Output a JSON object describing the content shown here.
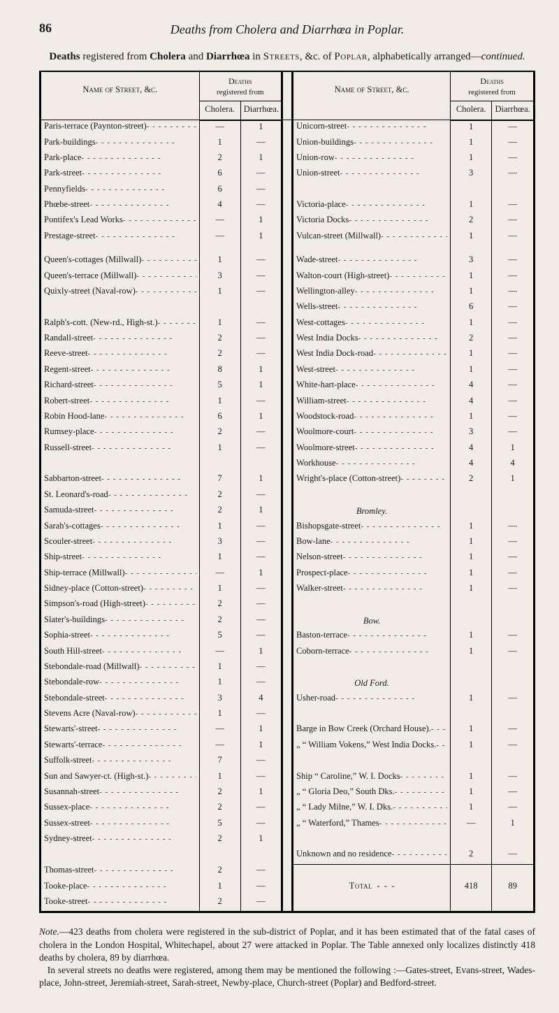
{
  "page_number": "86",
  "running_head": "Deaths from Cholera and Diarrhœa in Poplar.",
  "subhead_html": "<b>Deaths</b> registered from <b>Cholera</b> and <b>Diarrhœa</b> in <span class='smallcaps'>Streets</span>, &c. of <span class='smallcaps'>Poplar</span>, alphabetically arranged—<i>continued.</i>",
  "col_name_header": "Name of Street, &c.",
  "col_deaths_header": "Deaths",
  "col_deaths_sub": "registered from",
  "col_cholera": "Cholera.",
  "col_diarr": "Diarrhœa.",
  "left": [
    {
      "kind": "row",
      "name": "Paris-terrace (Paynton-street)",
      "c": "—",
      "d": "1"
    },
    {
      "kind": "row",
      "name": "Park-buildings",
      "c": "1",
      "d": "—"
    },
    {
      "kind": "row",
      "name": "Park-place",
      "c": "2",
      "d": "1"
    },
    {
      "kind": "row",
      "name": "Park-street",
      "c": "6",
      "d": "—"
    },
    {
      "kind": "row",
      "name": "Pennyfields",
      "c": "6",
      "d": "—"
    },
    {
      "kind": "row",
      "name": "Phœbe-street",
      "c": "4",
      "d": "—"
    },
    {
      "kind": "row",
      "name": "Pontifex's Lead Works",
      "c": "—",
      "d": "1"
    },
    {
      "kind": "row",
      "name": "Prestage-street",
      "c": "—",
      "d": "1"
    },
    {
      "kind": "gap"
    },
    {
      "kind": "row",
      "name": "Queen's-cottages (Millwall)",
      "c": "1",
      "d": "—"
    },
    {
      "kind": "row",
      "name": "Queen's-terrace (Millwall)",
      "c": "3",
      "d": "—"
    },
    {
      "kind": "row",
      "name": "Quixly-street (Naval-row)",
      "c": "1",
      "d": "—"
    },
    {
      "kind": "gap"
    },
    {
      "kind": "row",
      "name": "Ralph's-cott. (New-rd., High-st.)",
      "c": "1",
      "d": "—"
    },
    {
      "kind": "row",
      "name": "Randall-street",
      "c": "2",
      "d": "—"
    },
    {
      "kind": "row",
      "name": "Reeve-street",
      "c": "2",
      "d": "—"
    },
    {
      "kind": "row",
      "name": "Regent-street",
      "c": "8",
      "d": "1"
    },
    {
      "kind": "row",
      "name": "Richard-street",
      "c": "5",
      "d": "1"
    },
    {
      "kind": "row",
      "name": "Robert-street",
      "c": "1",
      "d": "—"
    },
    {
      "kind": "row",
      "name": "Robin Hood-lane",
      "c": "6",
      "d": "1"
    },
    {
      "kind": "row",
      "name": "Rumsey-place",
      "c": "2",
      "d": "—"
    },
    {
      "kind": "row",
      "name": "Russell-street",
      "c": "1",
      "d": "—"
    },
    {
      "kind": "gap"
    },
    {
      "kind": "row",
      "name": "Sabbarton-street",
      "c": "7",
      "d": "1"
    },
    {
      "kind": "row",
      "name": "St. Leonard's-road",
      "c": "2",
      "d": "—"
    },
    {
      "kind": "row",
      "name": "Samuda-street",
      "c": "2",
      "d": "1"
    },
    {
      "kind": "row",
      "name": "Sarah's-cottages",
      "c": "1",
      "d": "—"
    },
    {
      "kind": "row",
      "name": "Scouler-street",
      "c": "3",
      "d": "—"
    },
    {
      "kind": "row",
      "name": "Ship-street",
      "c": "1",
      "d": "—"
    },
    {
      "kind": "row",
      "name": "Ship-terrace (Millwall)",
      "c": "—",
      "d": "1"
    },
    {
      "kind": "row",
      "name": "Sidney-place (Cotton-street)",
      "c": "1",
      "d": "—"
    },
    {
      "kind": "row",
      "name": "Simpson's-road (High-street)",
      "c": "2",
      "d": "—"
    },
    {
      "kind": "row",
      "name": "Slater's-buildings",
      "c": "2",
      "d": "—"
    },
    {
      "kind": "row",
      "name": "Sophia-street",
      "c": "5",
      "d": "—"
    },
    {
      "kind": "row",
      "name": "South Hill-street",
      "c": "—",
      "d": "1"
    },
    {
      "kind": "row",
      "name": "Stebondale-road (Millwall)",
      "c": "1",
      "d": "—"
    },
    {
      "kind": "row",
      "name": "Stebondale-row",
      "c": "1",
      "d": "—"
    },
    {
      "kind": "row",
      "name": "Stebondale-street",
      "c": "3",
      "d": "4"
    },
    {
      "kind": "row",
      "name": "Stevens Acre (Naval-row)",
      "c": "1",
      "d": "—"
    },
    {
      "kind": "row",
      "name": "Stewarts'-street",
      "c": "—",
      "d": "1"
    },
    {
      "kind": "row",
      "name": "Stewarts'-terrace",
      "c": "—",
      "d": "1"
    },
    {
      "kind": "row",
      "name": "Suffolk-street",
      "c": "7",
      "d": "—"
    },
    {
      "kind": "row",
      "name": "Sun and Sawyer-ct. (High-st.)",
      "c": "1",
      "d": "—"
    },
    {
      "kind": "row",
      "name": "Susannah-street",
      "c": "2",
      "d": "1"
    },
    {
      "kind": "row",
      "name": "Sussex-place",
      "c": "2",
      "d": "—"
    },
    {
      "kind": "row",
      "name": "Sussex-street",
      "c": "5",
      "d": "—"
    },
    {
      "kind": "row",
      "name": "Sydney-street",
      "c": "2",
      "d": "1"
    },
    {
      "kind": "gap"
    },
    {
      "kind": "row",
      "name": "Thomas-street",
      "c": "2",
      "d": "—"
    },
    {
      "kind": "row",
      "name": "Tooke-place",
      "c": "1",
      "d": "—"
    },
    {
      "kind": "row",
      "name": "Tooke-street",
      "c": "2",
      "d": "—"
    }
  ],
  "right": [
    {
      "kind": "row",
      "name": "Unicorn-street",
      "c": "1",
      "d": "—"
    },
    {
      "kind": "row",
      "name": "Union-buildings",
      "c": "1",
      "d": "—"
    },
    {
      "kind": "row",
      "name": "Union-row",
      "c": "1",
      "d": "—"
    },
    {
      "kind": "row",
      "name": "Union-street",
      "c": "3",
      "d": "—"
    },
    {
      "kind": "gap"
    },
    {
      "kind": "row",
      "name": "Victoria-place",
      "c": "1",
      "d": "—"
    },
    {
      "kind": "row",
      "name": "Victoria Docks",
      "c": "2",
      "d": "—"
    },
    {
      "kind": "row",
      "name": "Vulcan-street (Millwall)",
      "c": "1",
      "d": "—"
    },
    {
      "kind": "gap"
    },
    {
      "kind": "row",
      "name": "Wade-street",
      "c": "3",
      "d": "—"
    },
    {
      "kind": "row",
      "name": "Walton-court (High-street)",
      "c": "1",
      "d": "—"
    },
    {
      "kind": "row",
      "name": "Wellington-alley",
      "c": "1",
      "d": "—"
    },
    {
      "kind": "row",
      "name": "Wells-street",
      "c": "6",
      "d": "—"
    },
    {
      "kind": "row",
      "name": "West-cottages",
      "c": "1",
      "d": "—"
    },
    {
      "kind": "row",
      "name": "West India Docks",
      "c": "2",
      "d": "—"
    },
    {
      "kind": "row",
      "name": "West India Dock-road",
      "c": "1",
      "d": "—"
    },
    {
      "kind": "row",
      "name": "West-street",
      "c": "1",
      "d": "—"
    },
    {
      "kind": "row",
      "name": "White-hart-place",
      "c": "4",
      "d": "—"
    },
    {
      "kind": "row",
      "name": "William-street",
      "c": "4",
      "d": "—"
    },
    {
      "kind": "row",
      "name": "Woodstock-road",
      "c": "1",
      "d": "—"
    },
    {
      "kind": "row",
      "name": "Woolmore-court",
      "c": "3",
      "d": "—"
    },
    {
      "kind": "row",
      "name": "Woolmore-street",
      "c": "4",
      "d": "1"
    },
    {
      "kind": "row",
      "name": "Workhouse",
      "c": "4",
      "d": "4"
    },
    {
      "kind": "row",
      "name": "Wright's-place (Cotton-street)",
      "c": "2",
      "d": "1"
    },
    {
      "kind": "gap"
    },
    {
      "kind": "sect",
      "name": "Bromley."
    },
    {
      "kind": "row",
      "name": "Bishopsgate-street",
      "c": "1",
      "d": "—"
    },
    {
      "kind": "row",
      "name": "Bow-lane",
      "c": "1",
      "d": "—"
    },
    {
      "kind": "row",
      "name": "Nelson-street",
      "c": "1",
      "d": "—"
    },
    {
      "kind": "row",
      "name": "Prospect-place",
      "c": "1",
      "d": "—"
    },
    {
      "kind": "row",
      "name": "Walker-street",
      "c": "1",
      "d": "—"
    },
    {
      "kind": "gap"
    },
    {
      "kind": "sect",
      "name": "Bow."
    },
    {
      "kind": "row",
      "name": "Baston-terrace",
      "c": "1",
      "d": "—"
    },
    {
      "kind": "row",
      "name": "Coborn-terrace",
      "c": "1",
      "d": "—"
    },
    {
      "kind": "gap"
    },
    {
      "kind": "sect",
      "name": "Old Ford."
    },
    {
      "kind": "row",
      "name": "Usher-road",
      "c": "1",
      "d": "—"
    },
    {
      "kind": "gap"
    },
    {
      "kind": "row",
      "name": "Barge in Bow Creek (Orchard House).",
      "c": "1",
      "d": "—",
      "wrap": true
    },
    {
      "kind": "row",
      "name": "   „   “ William Vokens,” West India Docks.",
      "c": "1",
      "d": "—",
      "wrap": true
    },
    {
      "kind": "gap"
    },
    {
      "kind": "row",
      "name": "Ship “ Caroline,” W. I. Docks",
      "c": "1",
      "d": "—"
    },
    {
      "kind": "row",
      "name": "  „   “ Gloria Deo,” South Dks.",
      "c": "1",
      "d": "—"
    },
    {
      "kind": "row",
      "name": "  „   “ Lady Milne,” W. I. Dks.",
      "c": "1",
      "d": "—"
    },
    {
      "kind": "row",
      "name": "  „   “ Waterford,” Thames",
      "c": "—",
      "d": "1"
    },
    {
      "kind": "gap"
    },
    {
      "kind": "row",
      "name": "Unknown and no residence",
      "c": "2",
      "d": "—"
    },
    {
      "kind": "rule"
    },
    {
      "kind": "total",
      "name": "Total",
      "c": "418",
      "d": "89"
    }
  ],
  "note_html": "<span class='lead'>Note.</span>—423 deaths from cholera were registered in the sub-district of Poplar, and it has been estimated that of the fatal cases of cholera in the London Hospital, Whitechapel, about 27 were attacked in Poplar. The Table annexed only localizes distinctly 418 deaths by cholera, 89 by diarrhœa.<br>&nbsp;&nbsp;&nbsp;In several streets no deaths were registered, among them may be mentioned the following :—Gates-street, Evans-street, Wades-place, John-street, Jeremiah-street, Sarah-street, Newby-place, Church-street (Poplar) and Bedford-street."
}
